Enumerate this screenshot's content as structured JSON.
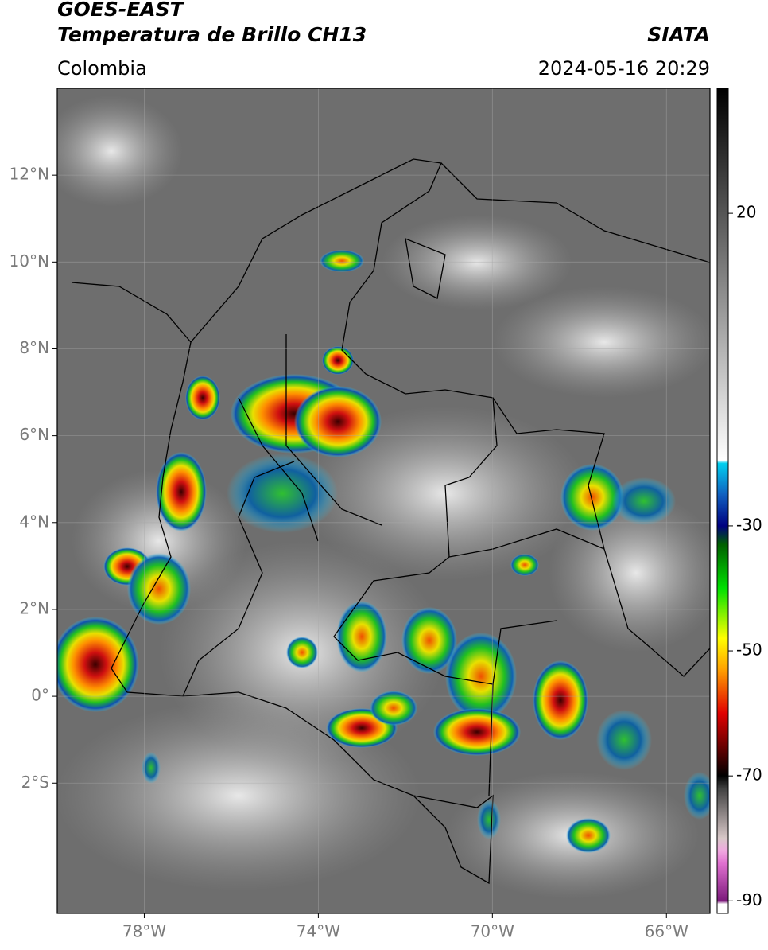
{
  "header": {
    "title": "GOES-EAST",
    "subtitle": "Temperatura de Brillo CH13",
    "source": "SIATA",
    "region": "Colombia",
    "datetime": "2024-05-16 20:29"
  },
  "map": {
    "type": "map",
    "xlim": [
      -80,
      -65
    ],
    "ylim": [
      -5,
      14
    ],
    "xticks": [
      {
        "value": -78,
        "label": "78°W"
      },
      {
        "value": -74,
        "label": "74°W"
      },
      {
        "value": -70,
        "label": "70°W"
      },
      {
        "value": -66,
        "label": "66°W"
      }
    ],
    "yticks": [
      {
        "value": 12,
        "label": "12°N"
      },
      {
        "value": 10,
        "label": "10°N"
      },
      {
        "value": 8,
        "label": "8°N"
      },
      {
        "value": 6,
        "label": "6°N"
      },
      {
        "value": 4,
        "label": "4°N"
      },
      {
        "value": 2,
        "label": "2°N"
      },
      {
        "value": 0,
        "label": "0°"
      },
      {
        "value": -2,
        "label": "2°S"
      }
    ],
    "grid": true
  },
  "colorbar": {
    "range": [
      -92,
      40
    ],
    "ticks": [
      20,
      -30,
      -50,
      -70,
      -90
    ],
    "colormap": [
      [
        -92,
        "#ffffff"
      ],
      [
        -90.5,
        "#ffffff"
      ],
      [
        -90,
        "#7b1a7b"
      ],
      [
        -84,
        "#e070d0"
      ],
      [
        -82,
        "#f0a8e0"
      ],
      [
        -80,
        "#d8c8c8"
      ],
      [
        -72,
        "#404040"
      ],
      [
        -70,
        "#000000"
      ],
      [
        -66,
        "#5a0000"
      ],
      [
        -60,
        "#e00000"
      ],
      [
        -53,
        "#ffa000"
      ],
      [
        -48,
        "#ffff00"
      ],
      [
        -40,
        "#00e000"
      ],
      [
        -33,
        "#006000"
      ],
      [
        -30,
        "#000080"
      ],
      [
        -25,
        "#1060c0"
      ],
      [
        -20,
        "#00d0f0"
      ],
      [
        -19.5,
        "#ffffff"
      ],
      [
        40,
        "#000000"
      ]
    ]
  }
}
